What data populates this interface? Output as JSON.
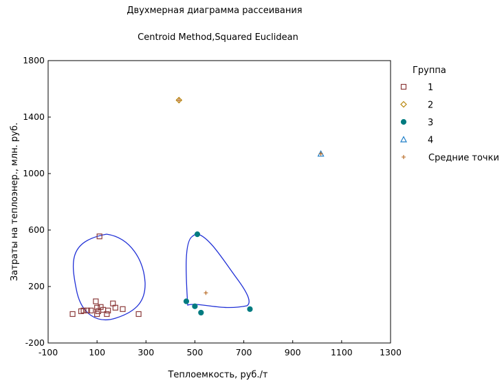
{
  "chart_data": {
    "type": "scatter",
    "title": "Двухмерная диаграмма рассеивания",
    "subtitle": "Centroid Method,Squared Euclidean",
    "xlabel": "Теплоемкость, руб./т",
    "ylabel": "Затраты на теплоэнер., млн. руб.",
    "xlim": [
      -100,
      1300
    ],
    "ylim": [
      -200,
      1800
    ],
    "xticks": [
      "-100",
      "100",
      "300",
      "500",
      "700",
      "900",
      "1100",
      "1300"
    ],
    "yticks": [
      "-200",
      "200",
      "600",
      "1000",
      "1400",
      "1800"
    ],
    "legend_title": "Группа",
    "legend_position": "right",
    "series": [
      {
        "name": "1",
        "marker": "square",
        "color": "#8B3A3A",
        "points": [
          [
            0,
            5
          ],
          [
            35,
            25
          ],
          [
            45,
            30
          ],
          [
            60,
            30
          ],
          [
            75,
            30
          ],
          [
            95,
            95
          ],
          [
            100,
            5
          ],
          [
            100,
            50
          ],
          [
            105,
            25
          ],
          [
            115,
            55
          ],
          [
            125,
            35
          ],
          [
            140,
            5
          ],
          [
            145,
            30
          ],
          [
            165,
            80
          ],
          [
            175,
            50
          ],
          [
            205,
            40
          ],
          [
            270,
            5
          ],
          [
            110,
            555
          ]
        ]
      },
      {
        "name": "2",
        "marker": "diamond",
        "color": "#B8860B",
        "points": [
          [
            435,
            1520
          ]
        ]
      },
      {
        "name": "3",
        "marker": "circle",
        "color": "#007B80",
        "points": [
          [
            465,
            95
          ],
          [
            500,
            60
          ],
          [
            510,
            570
          ],
          [
            525,
            15
          ],
          [
            725,
            40
          ]
        ]
      },
      {
        "name": "4",
        "marker": "triangle",
        "color": "#1E7EC8",
        "points": [
          [
            1015,
            1140
          ]
        ]
      },
      {
        "name": "Средние точки",
        "marker": "plus",
        "color": "#B5651D",
        "points": [
          [
            435,
            1520
          ],
          [
            545,
            155
          ],
          [
            1015,
            1140
          ]
        ]
      }
    ],
    "grid": false
  }
}
